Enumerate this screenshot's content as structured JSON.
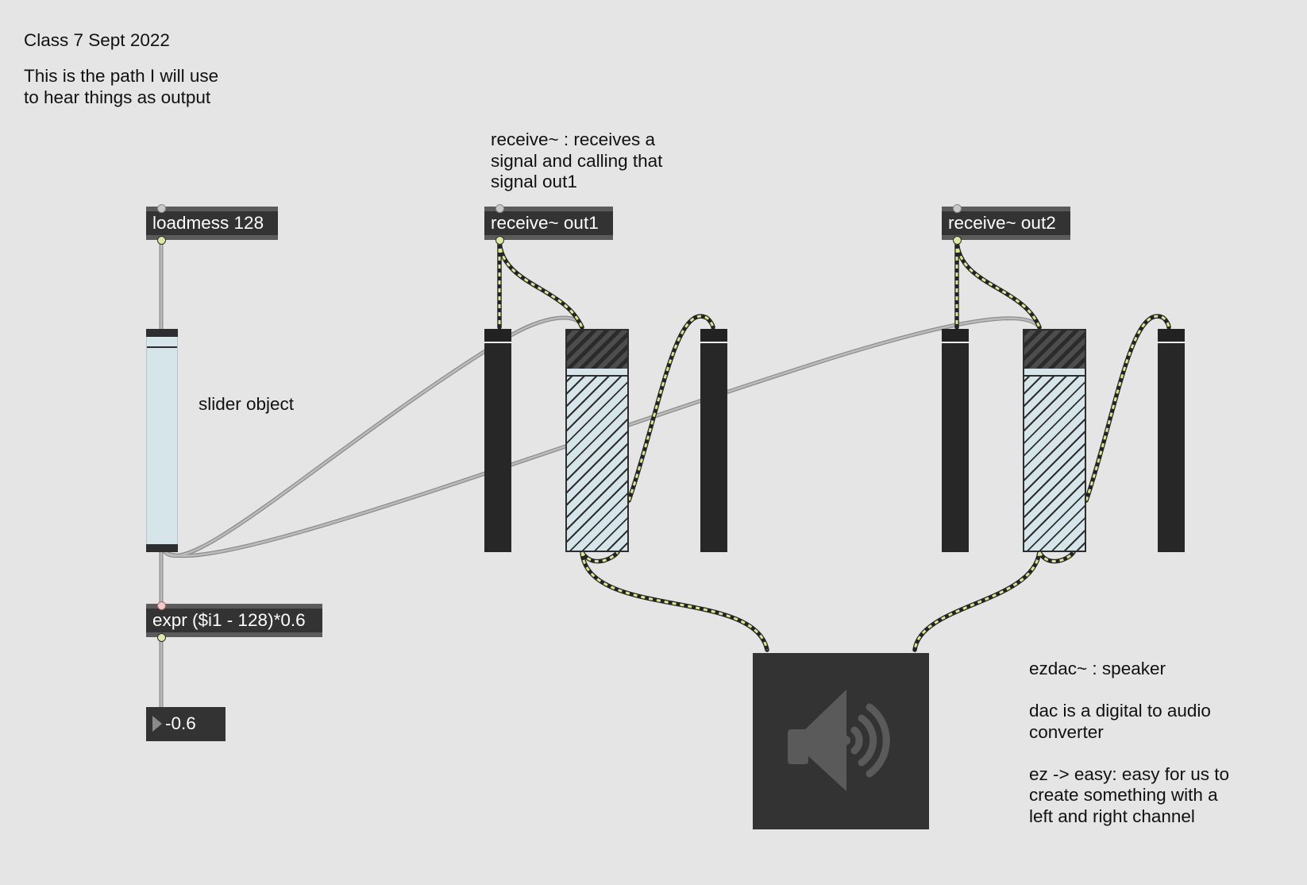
{
  "comments": {
    "title": "Class 7 Sept 2022",
    "intro": "This is the path I will use\nto hear things as output",
    "receive_note": "receive~ : receives a\nsignal and calling that\nsignal out1",
    "slider_note": "slider object",
    "ezdac_note": "ezdac~ : speaker\n\ndac is a digital to audio\nconverter\n\nez -> easy: easy for us to\ncreate something with a\nleft and right channel"
  },
  "objects": {
    "loadmess": "loadmess 128",
    "receive1": "receive~ out1",
    "receive2": "receive~ out2",
    "expr": "expr ($i1 - 128)*0.6"
  },
  "number_box": {
    "value": "-0.6"
  },
  "slider": {
    "value": 128,
    "max": 128
  },
  "gain1": {
    "level": 0.82
  },
  "gain2": {
    "level": 0.82
  },
  "ezdac": {
    "icon": "speaker-icon",
    "state": "off"
  },
  "colors": {
    "canvas": "#e5e5e5",
    "object_box": "#333333",
    "signal_cord": "#d9e686",
    "control_cord": "#a6a6a6",
    "slider_fill": "#d5e5e9"
  }
}
